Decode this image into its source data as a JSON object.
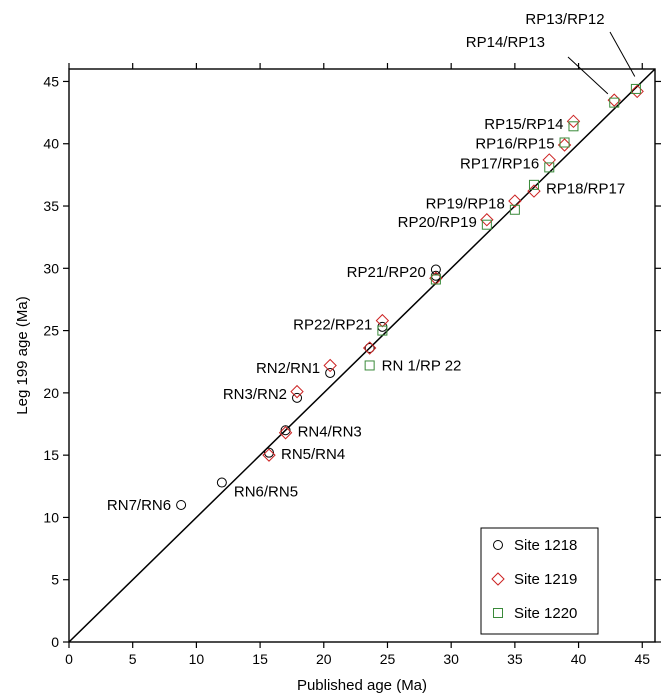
{
  "chart_data": {
    "type": "scatter",
    "title": "",
    "xlabel": "Published age (Ma)",
    "ylabel": "Leg 199 age (Ma)",
    "xlim": [
      0,
      46
    ],
    "ylim": [
      0,
      46
    ],
    "xticks": [
      "0",
      "5",
      "10",
      "15",
      "20",
      "25",
      "30",
      "35",
      "40",
      "45"
    ],
    "yticks": [
      "0",
      "5",
      "10",
      "15",
      "20",
      "25",
      "30",
      "35",
      "40",
      "45"
    ],
    "grid": false,
    "legend_position": "bottom-right",
    "reference_line": {
      "from": [
        0,
        0
      ],
      "to": [
        46,
        46
      ],
      "color": "#000000"
    },
    "series": [
      {
        "name": "Site 1218",
        "marker": "circle",
        "color": "#000000",
        "points": [
          [
            8.8,
            11.0
          ],
          [
            12.0,
            12.8
          ],
          [
            15.7,
            15.2
          ],
          [
            17.0,
            17.0
          ],
          [
            17.9,
            19.6
          ],
          [
            20.5,
            21.6
          ],
          [
            23.6,
            23.6
          ],
          [
            24.6,
            25.3
          ],
          [
            28.8,
            29.9
          ],
          [
            28.8,
            29.4
          ]
        ]
      },
      {
        "name": "Site 1219",
        "marker": "diamond",
        "color": "#cc2222",
        "points": [
          [
            15.7,
            15.0
          ],
          [
            17.0,
            16.8
          ],
          [
            17.9,
            20.1
          ],
          [
            20.5,
            22.2
          ],
          [
            23.6,
            23.6
          ],
          [
            24.6,
            25.8
          ],
          [
            28.8,
            29.2
          ],
          [
            32.8,
            33.9
          ],
          [
            35.0,
            35.4
          ],
          [
            36.5,
            36.2
          ],
          [
            37.7,
            38.7
          ],
          [
            38.9,
            39.9
          ],
          [
            39.6,
            41.8
          ],
          [
            42.8,
            43.5
          ],
          [
            44.6,
            44.2
          ]
        ]
      },
      {
        "name": "Site 1220",
        "marker": "square",
        "color": "#3a8a3a",
        "points": [
          [
            23.6,
            22.2
          ],
          [
            24.6,
            25.0
          ],
          [
            28.8,
            29.1
          ],
          [
            32.8,
            33.5
          ],
          [
            35.0,
            34.7
          ],
          [
            36.5,
            36.7
          ],
          [
            37.7,
            38.1
          ],
          [
            38.9,
            40.1
          ],
          [
            39.6,
            41.4
          ],
          [
            42.8,
            43.3
          ],
          [
            44.5,
            44.4
          ]
        ]
      }
    ],
    "annotations": [
      {
        "text": "RN7/RN6",
        "x": 8.8,
        "y": 11.0,
        "side": "left"
      },
      {
        "text": "RN6/RN5",
        "x": 12.0,
        "y": 12.8,
        "side": "right-below"
      },
      {
        "text": "RN5/RN4",
        "x": 15.7,
        "y": 15.1,
        "side": "right"
      },
      {
        "text": "RN4/RN3",
        "x": 17.0,
        "y": 16.9,
        "side": "right"
      },
      {
        "text": "RN3/RN2",
        "x": 17.9,
        "y": 19.9,
        "side": "left"
      },
      {
        "text": "RN2/RN1",
        "x": 20.5,
        "y": 22.0,
        "side": "left"
      },
      {
        "text": "RN 1/RP 22",
        "x": 23.6,
        "y": 22.2,
        "side": "right"
      },
      {
        "text": "RP22/RP21",
        "x": 24.6,
        "y": 25.5,
        "side": "left"
      },
      {
        "text": "RP21/RP20",
        "x": 28.8,
        "y": 29.7,
        "side": "left"
      },
      {
        "text": "RP20/RP19",
        "x": 32.8,
        "y": 33.7,
        "side": "left"
      },
      {
        "text": "RP19/RP18",
        "x": 35.0,
        "y": 35.2,
        "side": "left"
      },
      {
        "text": "RP18/RP17",
        "x": 36.5,
        "y": 36.4,
        "side": "right"
      },
      {
        "text": "RP17/RP16",
        "x": 37.7,
        "y": 38.4,
        "side": "left"
      },
      {
        "text": "RP16/RP15",
        "x": 38.9,
        "y": 40.0,
        "side": "left"
      },
      {
        "text": "RP15/RP14",
        "x": 39.6,
        "y": 41.6,
        "side": "left"
      },
      {
        "text": "RP14/RP13",
        "x": 42.3,
        "y": 44.0,
        "side": "leader-left"
      },
      {
        "text": "RP13/RP12",
        "x": 44.1,
        "y": 45.0,
        "side": "leader-top"
      }
    ]
  }
}
